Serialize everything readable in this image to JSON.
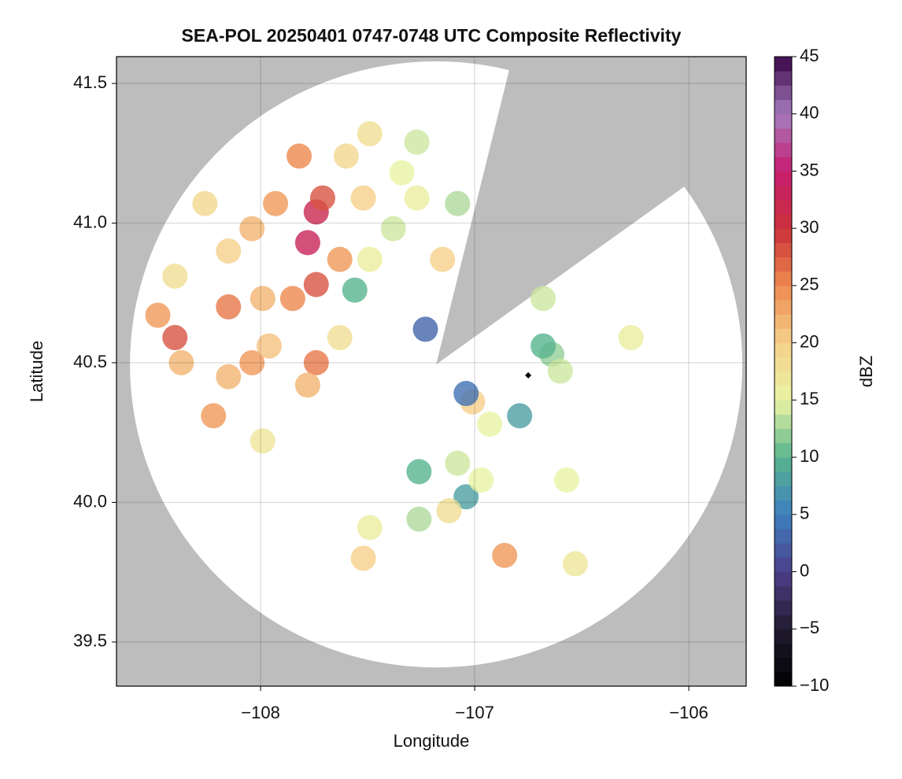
{
  "chart_data": {
    "type": "heatmap",
    "title": "SEA-POL 20250401 0747-0748 UTC Composite Reflectivity",
    "xlabel": "Longitude",
    "ylabel": "Latitude",
    "xlim": [
      -108.673,
      -105.732
    ],
    "ylim": [
      39.342,
      41.596
    ],
    "xticks": [
      {
        "value": -108,
        "label": "−108"
      },
      {
        "value": -107,
        "label": "−107"
      },
      {
        "value": -106,
        "label": "−106"
      }
    ],
    "yticks": [
      {
        "value": 39.5,
        "label": "39.5"
      },
      {
        "value": 40.0,
        "label": "40.0"
      },
      {
        "value": 40.5,
        "label": "40.5"
      },
      {
        "value": 41.0,
        "label": "41.0"
      },
      {
        "value": 41.5,
        "label": "41.5"
      }
    ],
    "grid": true,
    "background_color": "#bdbdbd",
    "coverage": {
      "center": [
        -107.18,
        40.494
      ],
      "range": [
        1.43,
        1.085
      ],
      "blocked_azimuth": [
        13.8,
        54.1
      ],
      "color": "#ffffff"
    },
    "site_marker": [
      -106.75,
      40.455
    ],
    "colorbar": {
      "label": "dBZ",
      "lim": [
        -10,
        45
      ],
      "ticks": [
        {
          "value": -10,
          "label": "−10"
        },
        {
          "value": -5,
          "label": "−5"
        },
        0,
        5,
        10,
        15,
        20,
        25,
        30,
        35,
        40,
        45
      ],
      "colormap": [
        "#000000",
        "#201b30",
        "#4c3f8a",
        "#3d7fbf",
        "#58b48e",
        "#e9f4a4",
        "#f5d08a",
        "#ee8a4e",
        "#c9303a",
        "#c81c70",
        "#a57cbf",
        "#3a0648"
      ]
    },
    "x": [
      -107.74,
      -107.78,
      -107.71,
      -107.82,
      -107.93,
      -108.04,
      -108.15,
      -108.26,
      -107.6,
      -107.49,
      -107.52,
      -107.63,
      -107.74,
      -107.85,
      -107.99,
      -108.15,
      -108.4,
      -108.48,
      -108.37,
      -108.15,
      -108.22,
      -108.04,
      -107.96,
      -107.74,
      -107.78,
      -107.63,
      -107.56,
      -107.49,
      -107.38,
      -107.27,
      -107.34,
      -107.08,
      -107.15,
      -107.23,
      -107.99,
      -108.4,
      -107.27,
      -107.01,
      -107.04,
      -106.93,
      -107.08,
      -107.04,
      -107.12,
      -106.97,
      -107.26,
      -107.26,
      -107.49,
      -107.52,
      -106.86,
      -106.64,
      -106.6,
      -106.68,
      -106.57,
      -106.68,
      -106.27,
      -106.79,
      -106.53
    ],
    "y": [
      41.04,
      40.93,
      41.09,
      41.24,
      41.07,
      40.98,
      40.9,
      41.07,
      41.24,
      41.32,
      41.09,
      40.87,
      40.78,
      40.73,
      40.73,
      40.7,
      40.59,
      40.67,
      40.5,
      40.45,
      40.31,
      40.5,
      40.56,
      40.5,
      40.42,
      40.59,
      40.76,
      40.87,
      40.98,
      41.09,
      41.18,
      41.07,
      40.87,
      40.62,
      40.22,
      40.81,
      41.29,
      40.36,
      40.39,
      40.28,
      40.14,
      40.02,
      39.97,
      40.08,
      40.11,
      39.94,
      39.91,
      39.8,
      39.81,
      40.53,
      40.47,
      40.56,
      40.08,
      40.73,
      40.59,
      40.31,
      39.78
    ],
    "values": [
      32,
      33,
      28,
      25,
      24,
      22,
      20,
      19,
      19,
      18,
      20,
      24,
      28,
      25,
      22,
      26,
      28,
      24,
      22,
      22,
      24,
      24,
      21,
      26,
      22,
      18,
      10,
      16,
      14,
      16,
      15,
      13,
      20,
      3,
      17,
      18,
      14,
      20,
      4,
      15,
      14,
      8,
      18,
      15,
      10,
      13,
      16,
      20,
      24,
      12,
      14,
      10,
      15,
      14,
      16,
      8,
      17
    ]
  }
}
